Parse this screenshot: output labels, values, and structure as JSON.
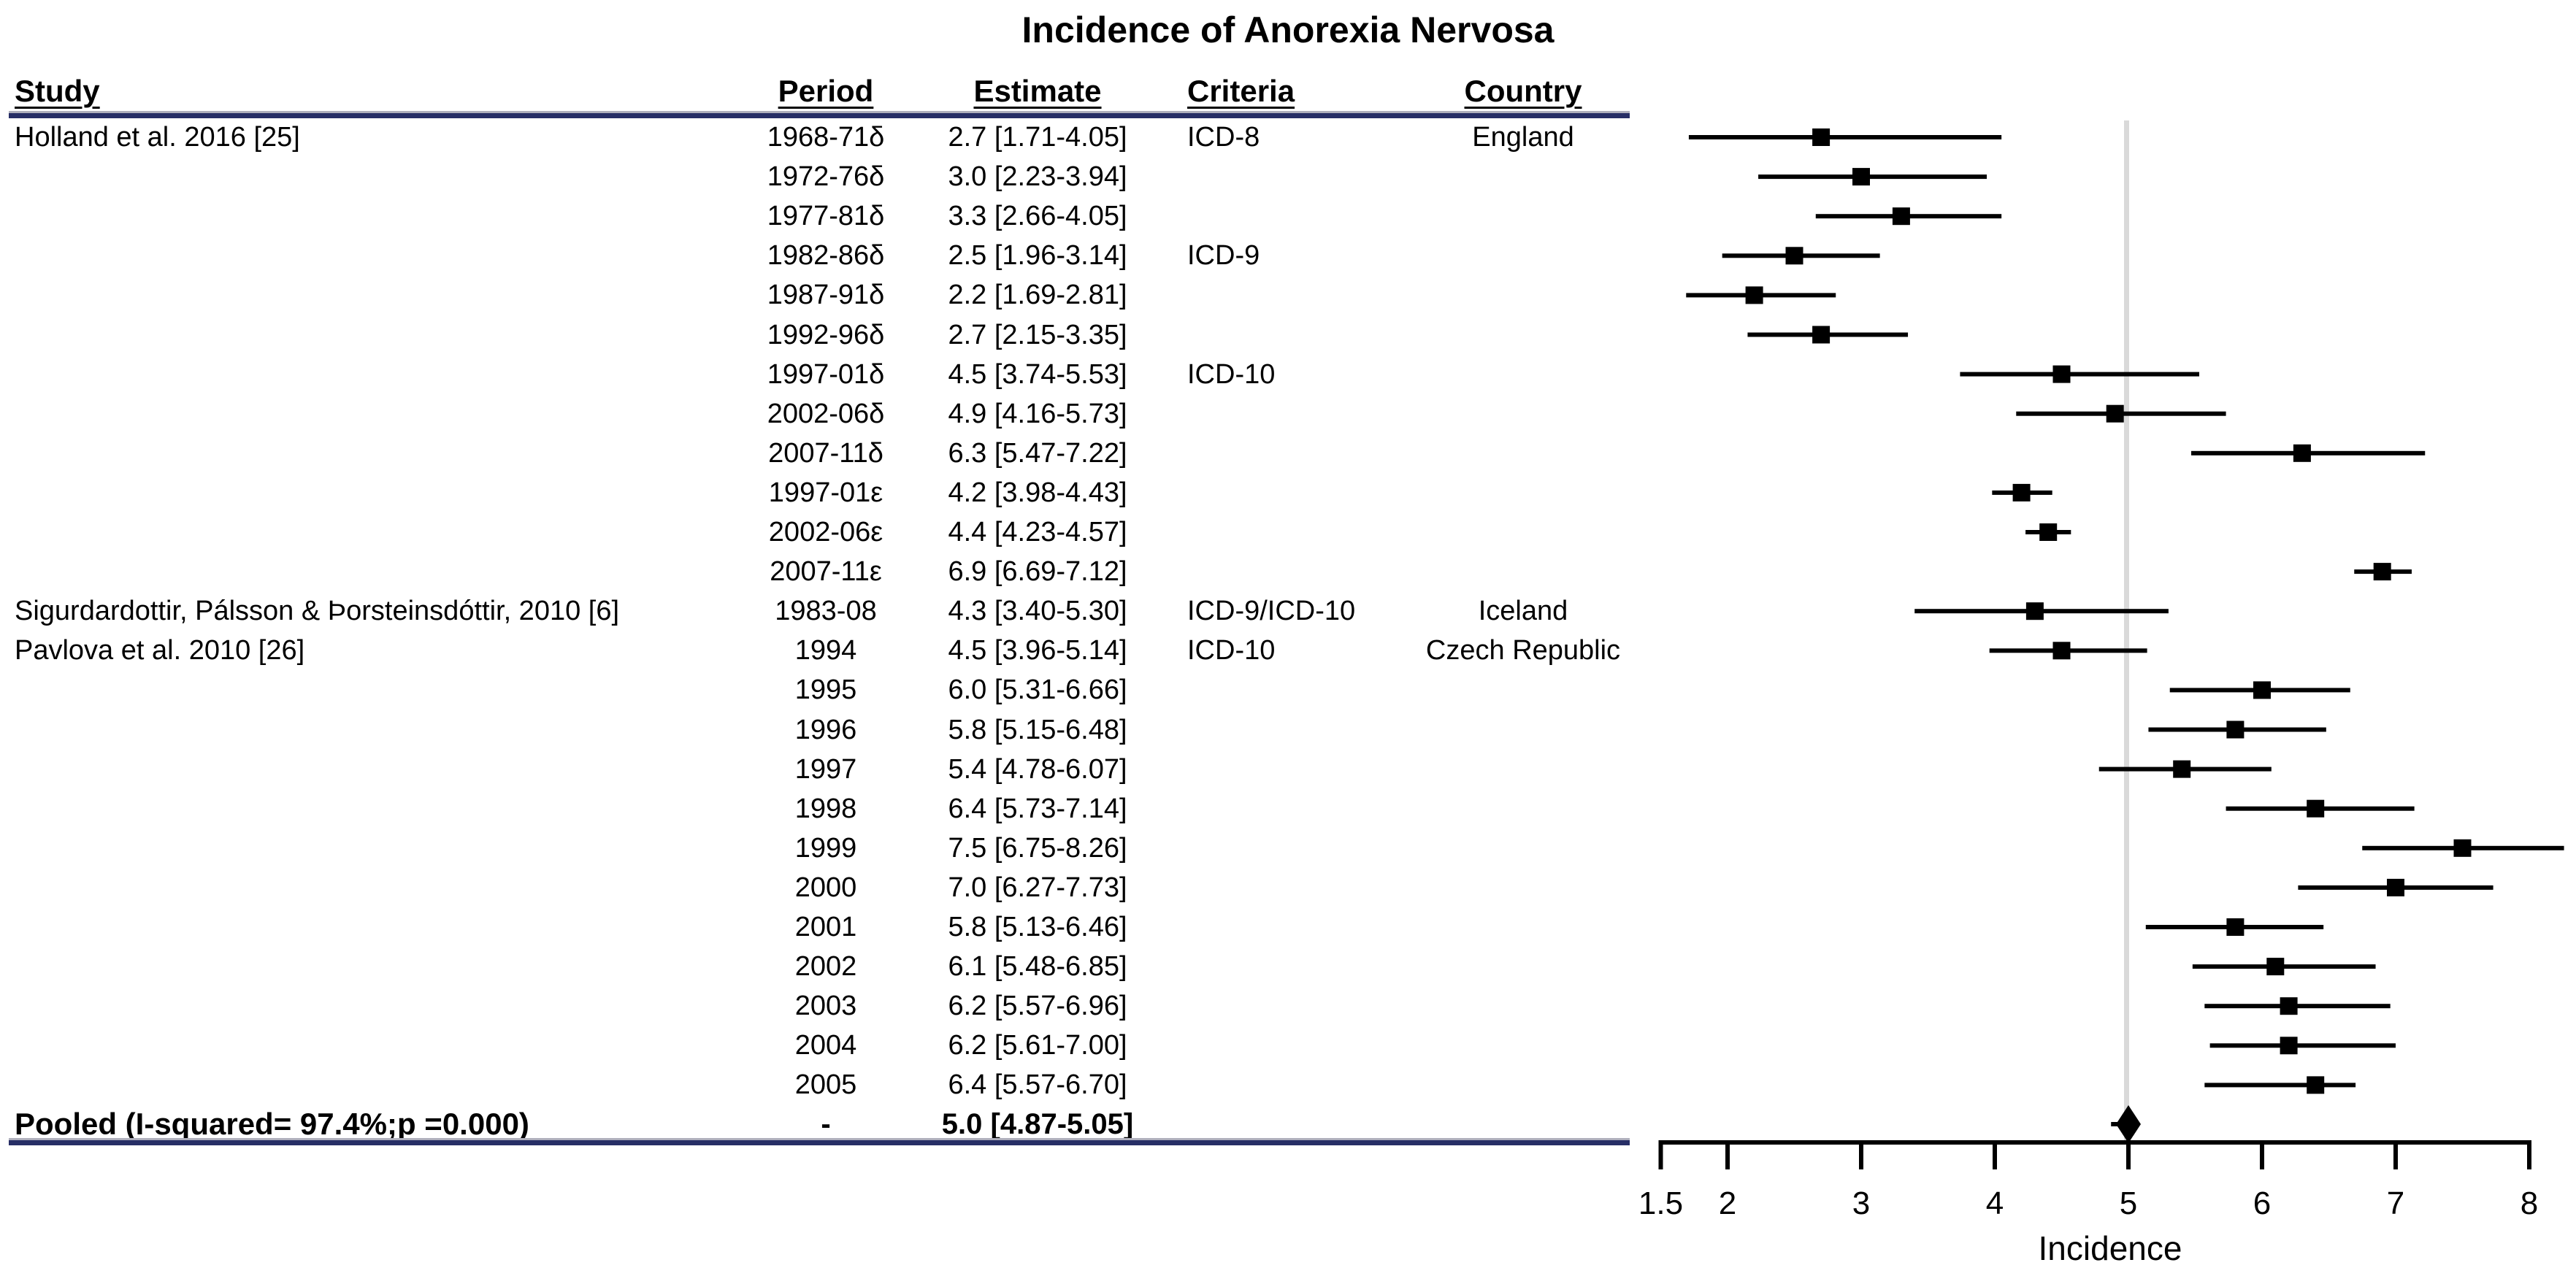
{
  "chart_data": {
    "type": "scatter",
    "subtype": "forest-plot",
    "title": "Incidence of Anorexia Nervosa",
    "xlabel": "Incidence",
    "xlim": [
      1.5,
      8
    ],
    "x_ticks": [
      1.5,
      2,
      3,
      4,
      5,
      6,
      7,
      8
    ],
    "x_tick_labels": [
      "1.5",
      "2",
      "3",
      "4",
      "5",
      "6",
      "7",
      "8"
    ],
    "reference_line_x": 5,
    "grid": false,
    "columns": {
      "study": "Study",
      "period": "Period",
      "estimate": "Estimate",
      "criteria": "Criteria",
      "country": "Country"
    },
    "rows": [
      {
        "study": "Holland et al. 2016 [25]",
        "period": "1968-71δ",
        "estimate_text": "2.7 [1.71-4.05]",
        "criteria": "ICD-8",
        "country": "England",
        "est": 2.7,
        "lo": 1.71,
        "hi": 4.05
      },
      {
        "study": "",
        "period": "1972-76δ",
        "estimate_text": "3.0 [2.23-3.94]",
        "criteria": "",
        "country": "",
        "est": 3.0,
        "lo": 2.23,
        "hi": 3.94
      },
      {
        "study": "",
        "period": "1977-81δ",
        "estimate_text": "3.3 [2.66-4.05]",
        "criteria": "",
        "country": "",
        "est": 3.3,
        "lo": 2.66,
        "hi": 4.05
      },
      {
        "study": "",
        "period": "1982-86δ",
        "estimate_text": "2.5 [1.96-3.14]",
        "criteria": "ICD-9",
        "country": "",
        "est": 2.5,
        "lo": 1.96,
        "hi": 3.14
      },
      {
        "study": "",
        "period": "1987-91δ",
        "estimate_text": "2.2 [1.69-2.81]",
        "criteria": "",
        "country": "",
        "est": 2.2,
        "lo": 1.69,
        "hi": 2.81
      },
      {
        "study": "",
        "period": "1992-96δ",
        "estimate_text": "2.7 [2.15-3.35]",
        "criteria": "",
        "country": "",
        "est": 2.7,
        "lo": 2.15,
        "hi": 3.35
      },
      {
        "study": "",
        "period": "1997-01δ",
        "estimate_text": "4.5 [3.74-5.53]",
        "criteria": "ICD-10",
        "country": "",
        "est": 4.5,
        "lo": 3.74,
        "hi": 5.53
      },
      {
        "study": "",
        "period": "2002-06δ",
        "estimate_text": "4.9 [4.16-5.73]",
        "criteria": "",
        "country": "",
        "est": 4.9,
        "lo": 4.16,
        "hi": 5.73
      },
      {
        "study": "",
        "period": "2007-11δ",
        "estimate_text": "6.3 [5.47-7.22]",
        "criteria": "",
        "country": "",
        "est": 6.3,
        "lo": 5.47,
        "hi": 7.22
      },
      {
        "study": "",
        "period": "1997-01ε",
        "estimate_text": "4.2 [3.98-4.43]",
        "criteria": "",
        "country": "",
        "est": 4.2,
        "lo": 3.98,
        "hi": 4.43
      },
      {
        "study": "",
        "period": "2002-06ε",
        "estimate_text": "4.4 [4.23-4.57]",
        "criteria": "",
        "country": "",
        "est": 4.4,
        "lo": 4.23,
        "hi": 4.57
      },
      {
        "study": "",
        "period": "2007-11ε",
        "estimate_text": "6.9 [6.69-7.12]",
        "criteria": "",
        "country": "",
        "est": 6.9,
        "lo": 6.69,
        "hi": 7.12
      },
      {
        "study": "Sigurdardottir, Pálsson & Þorsteinsdóttir, 2010 [6]",
        "period": "1983-08",
        "estimate_text": "4.3 [3.40-5.30]",
        "criteria": "ICD-9/ICD-10",
        "country": "Iceland",
        "est": 4.3,
        "lo": 3.4,
        "hi": 5.3
      },
      {
        "study": "Pavlova et al. 2010 [26]",
        "period": "1994",
        "estimate_text": "4.5 [3.96-5.14]",
        "criteria": "ICD-10",
        "country": "Czech Republic",
        "est": 4.5,
        "lo": 3.96,
        "hi": 5.14
      },
      {
        "study": "",
        "period": "1995",
        "estimate_text": "6.0 [5.31-6.66]",
        "criteria": "",
        "country": "",
        "est": 6.0,
        "lo": 5.31,
        "hi": 6.66
      },
      {
        "study": "",
        "period": "1996",
        "estimate_text": "5.8 [5.15-6.48]",
        "criteria": "",
        "country": "",
        "est": 5.8,
        "lo": 5.15,
        "hi": 6.48
      },
      {
        "study": "",
        "period": "1997",
        "estimate_text": "5.4 [4.78-6.07]",
        "criteria": "",
        "country": "",
        "est": 5.4,
        "lo": 4.78,
        "hi": 6.07
      },
      {
        "study": "",
        "period": "1998",
        "estimate_text": "6.4 [5.73-7.14]",
        "criteria": "",
        "country": "",
        "est": 6.4,
        "lo": 5.73,
        "hi": 7.14
      },
      {
        "study": "",
        "period": "1999",
        "estimate_text": "7.5 [6.75-8.26]",
        "criteria": "",
        "country": "",
        "est": 7.5,
        "lo": 6.75,
        "hi": 8.26
      },
      {
        "study": "",
        "period": "2000",
        "estimate_text": "7.0 [6.27-7.73]",
        "criteria": "",
        "country": "",
        "est": 7.0,
        "lo": 6.27,
        "hi": 7.73
      },
      {
        "study": "",
        "period": "2001",
        "estimate_text": "5.8 [5.13-6.46]",
        "criteria": "",
        "country": "",
        "est": 5.8,
        "lo": 5.13,
        "hi": 6.46
      },
      {
        "study": "",
        "period": "2002",
        "estimate_text": "6.1 [5.48-6.85]",
        "criteria": "",
        "country": "",
        "est": 6.1,
        "lo": 5.48,
        "hi": 6.85
      },
      {
        "study": "",
        "period": "2003",
        "estimate_text": "6.2 [5.57-6.96]",
        "criteria": "",
        "country": "",
        "est": 6.2,
        "lo": 5.57,
        "hi": 6.96
      },
      {
        "study": "",
        "period": "2004",
        "estimate_text": "6.2 [5.61-7.00]",
        "criteria": "",
        "country": "",
        "est": 6.2,
        "lo": 5.61,
        "hi": 7.0
      },
      {
        "study": "",
        "period": "2005",
        "estimate_text": "6.4 [5.57-6.70]",
        "criteria": "",
        "country": "",
        "est": 6.4,
        "lo": 5.57,
        "hi": 6.7
      }
    ],
    "pooled": {
      "label": "Pooled (I-squared= 97.4%;p =0.000)",
      "period": "-",
      "estimate_text": "5.0 [4.87-5.05]",
      "est": 5.0,
      "lo": 4.87,
      "hi": 5.05
    },
    "colors": {
      "ink": "#000000",
      "rule_navy": "#272E66",
      "rule_gray": "#AFAFBC",
      "reference_line": "#D9D9D9"
    }
  }
}
